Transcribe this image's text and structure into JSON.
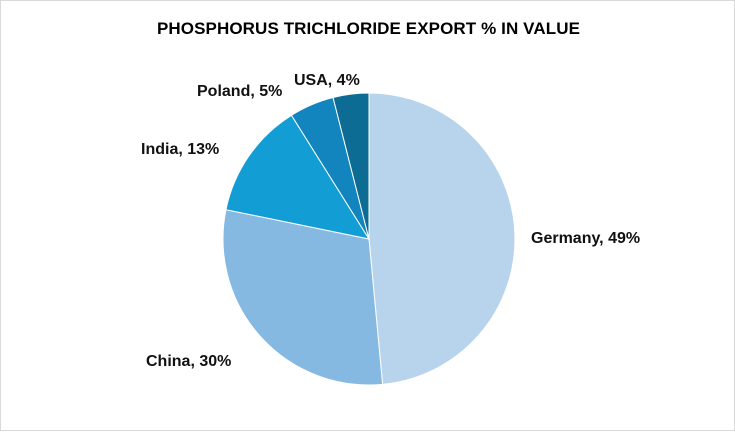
{
  "chart_data": {
    "type": "pie",
    "title": "PHOSPHORUS TRICHLORIDE EXPORT % IN VALUE",
    "categories": [
      "Germany",
      "China",
      "India",
      "Poland",
      "USA"
    ],
    "values": [
      49,
      30,
      13,
      5,
      4
    ],
    "data_labels": [
      "Germany, 49%",
      "China, 30%",
      "India, 13%",
      "Poland, 5%",
      "USA, 4%"
    ],
    "colors": [
      "#b8d4ec",
      "#86b9e1",
      "#129ed5",
      "#1284be",
      "#0d6c94"
    ],
    "legend": "none"
  }
}
